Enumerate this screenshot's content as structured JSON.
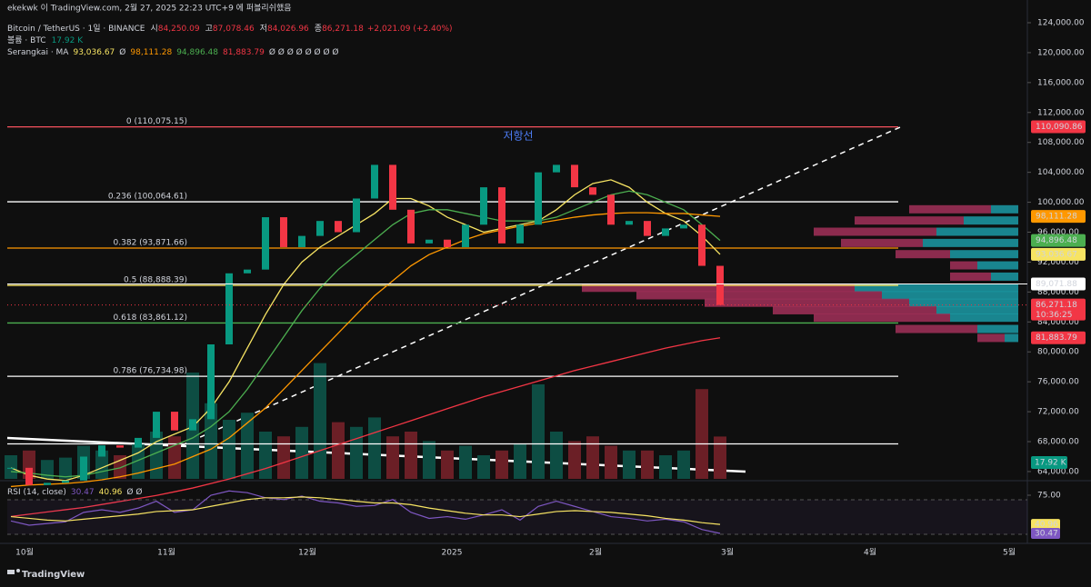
{
  "header": {
    "published": "ekekwk 이 TradingView.com, 2월 27, 2025 22:23 UTC+9 에 퍼블리쉬했음",
    "symbol": "Bitcoin / TetherUS · 1일 · BINANCE",
    "ohlc": [
      {
        "label": "시",
        "value": "84,250.09"
      },
      {
        "label": "고",
        "value": "87,078.46"
      },
      {
        "label": "저",
        "value": "84,026.96"
      },
      {
        "label": "종",
        "value": "86,271.18"
      }
    ],
    "change": "+2,021.09 (+2.40%)",
    "volume_label": "볼륨 · BTC",
    "volume_value": "17.92 K",
    "ma_label": "Serangkai · MA",
    "ma_values": [
      {
        "text": "93,036.67",
        "color": "#f7e463"
      },
      {
        "text": "Ø",
        "color": "#d1d4dc"
      },
      {
        "text": "98,111.28",
        "color": "#ff9800"
      },
      {
        "text": "94,896.48",
        "color": "#4caf50"
      },
      {
        "text": "81,883.79",
        "color": "#f23645"
      },
      {
        "text": "Ø Ø Ø Ø Ø Ø Ø Ø",
        "color": "#d1d4dc"
      }
    ]
  },
  "annotation": "저항선",
  "price_axis": {
    "ticks": [
      {
        "value": 124000,
        "label": "124,000.00"
      },
      {
        "value": 120000,
        "label": "120,000.00"
      },
      {
        "value": 116000,
        "label": "116,000.00"
      },
      {
        "value": 112000,
        "label": "112,000.00"
      },
      {
        "value": 108000,
        "label": "108,000.00"
      },
      {
        "value": 104000,
        "label": "104,000.00"
      },
      {
        "value": 100000,
        "label": "100,000.00"
      },
      {
        "value": 96000,
        "label": "96,000.00"
      },
      {
        "value": 92000,
        "label": "92,000.00"
      },
      {
        "value": 88000,
        "label": "88,000.00"
      },
      {
        "value": 84000,
        "label": "84,000.00"
      },
      {
        "value": 80000,
        "label": "80,000.00"
      },
      {
        "value": 76000,
        "label": "76,000.00"
      },
      {
        "value": 72000,
        "label": "72,000.00"
      },
      {
        "value": 68000,
        "label": "68,000.00"
      },
      {
        "value": 64000,
        "label": "64,000.00"
      }
    ]
  },
  "time_axis": [
    "10월",
    "11월",
    "12월",
    "2025",
    "2월",
    "3월",
    "4월",
    "5월"
  ],
  "fib_levels": [
    {
      "label": "0 (110,075.15)",
      "value": 110075.15,
      "color": "#f7525f"
    },
    {
      "label": "0.236 (100,064.61)",
      "value": 100064.61,
      "color": "#ffffff"
    },
    {
      "label": "0.382 (93,871.66)",
      "value": 93871.66,
      "color": "#ff9800"
    },
    {
      "label": "0.5 (88,888.39)",
      "value": 88888.39,
      "color": "#f7e463"
    },
    {
      "label": "0.618 (83,861.12)",
      "value": 83861.12,
      "color": "#4caf50"
    },
    {
      "label": "0.786 (76,734.98)",
      "value": 76734.98,
      "color": "#ffffff"
    },
    {
      "label": null,
      "value": 67700,
      "color": "#ffffff"
    }
  ],
  "price_tags": [
    {
      "label": "110,090.86",
      "value": 110090.86,
      "color": "#f23645"
    },
    {
      "label": "98,111.28",
      "value": 98111.28,
      "color": "#ff9800"
    },
    {
      "label": "94,896.48",
      "value": 94896.48,
      "color": "#4caf50"
    },
    {
      "label": "93,036.67",
      "value": 93036.67,
      "color": "#f7e463"
    },
    {
      "label": "89,071.88",
      "value": 89071.88,
      "color": "#ffffff"
    },
    {
      "label": "86,271.18",
      "value": 86271.18,
      "color": "#f23645",
      "countdown": "10:36:25"
    },
    {
      "label": "81,883.79",
      "value": 81883.79,
      "color": "#f23645"
    }
  ],
  "candles": {
    "closes": [
      64500,
      62200,
      62500,
      62800,
      66000,
      67500,
      67200,
      68500,
      72000,
      69500,
      71000,
      81000,
      90500,
      91000,
      98000,
      94000,
      95500,
      97500,
      96000,
      100500,
      105000,
      99000,
      94500,
      95000,
      94000,
      97000,
      102000,
      94500,
      97000,
      104000,
      105000,
      102000,
      101000,
      97000,
      97500,
      95500,
      96500,
      97000,
      91500,
      86271.18
    ],
    "up_color": "#089981",
    "down_color": "#f23645"
  },
  "moving_averages": [
    {
      "color": "#f7e463",
      "values": [
        64500,
        63500,
        63000,
        62800,
        63500,
        64500,
        65500,
        66500,
        68000,
        69000,
        70000,
        72500,
        76000,
        80500,
        85000,
        89000,
        92000,
        94000,
        95500,
        97000,
        98500,
        100500,
        100500,
        99500,
        98000,
        97000,
        96000,
        96500,
        97000,
        97500,
        99000,
        101000,
        102500,
        103000,
        102000,
        100000,
        98500,
        97500,
        95500,
        93036.67
      ]
    },
    {
      "color": "#4caf50",
      "values": [
        64000,
        63800,
        63500,
        63300,
        63500,
        64000,
        64500,
        65500,
        66500,
        67500,
        68500,
        70000,
        72000,
        75000,
        78500,
        82000,
        85500,
        88500,
        91000,
        93000,
        95000,
        97000,
        98500,
        99000,
        99000,
        98500,
        98000,
        97500,
        97500,
        97500,
        98000,
        99000,
        100000,
        101000,
        101500,
        101000,
        100000,
        99000,
        97000,
        94896.48
      ]
    },
    {
      "color": "#ff9800",
      "values": [
        62000,
        62200,
        62300,
        62400,
        62600,
        62900,
        63300,
        63800,
        64400,
        65000,
        66000,
        67000,
        68500,
        70500,
        72500,
        75000,
        77500,
        80000,
        82500,
        85000,
        87500,
        89500,
        91500,
        93000,
        94000,
        95000,
        95800,
        96300,
        96800,
        97200,
        97600,
        98000,
        98300,
        98500,
        98600,
        98600,
        98500,
        98500,
        98300,
        98111.28
      ]
    },
    {
      "color": "#f23645",
      "values": [
        58000,
        58300,
        58600,
        58900,
        59200,
        59600,
        60000,
        60400,
        60800,
        61300,
        61800,
        62400,
        63000,
        63700,
        64400,
        65200,
        66000,
        66800,
        67600,
        68400,
        69200,
        70000,
        70800,
        71600,
        72400,
        73200,
        74000,
        74700,
        75400,
        76100,
        76800,
        77500,
        78100,
        78700,
        79300,
        79900,
        80500,
        81000,
        81500,
        81883.79
      ]
    }
  ],
  "volume": {
    "values": [
      10,
      12,
      8,
      9,
      14,
      12,
      10,
      15,
      20,
      18,
      45,
      32,
      25,
      28,
      20,
      18,
      22,
      49,
      24,
      22,
      26,
      18,
      20,
      16,
      12,
      14,
      10,
      12,
      15,
      40,
      20,
      16,
      18,
      14,
      12,
      12,
      10,
      12,
      38,
      17.92
    ],
    "tag": "17.92 K"
  },
  "volume_profile": [
    {
      "price": 99000,
      "up": 20,
      "down": 60
    },
    {
      "price": 97500,
      "up": 40,
      "down": 80
    },
    {
      "price": 96000,
      "up": 60,
      "down": 90
    },
    {
      "price": 94500,
      "up": 70,
      "down": 60
    },
    {
      "price": 93000,
      "up": 50,
      "down": 40
    },
    {
      "price": 91500,
      "up": 30,
      "down": 20
    },
    {
      "price": 90000,
      "up": 20,
      "down": 30
    },
    {
      "price": 88500,
      "up": 120,
      "down": 200
    },
    {
      "price": 87500,
      "up": 100,
      "down": 180
    },
    {
      "price": 86500,
      "up": 80,
      "down": 150
    },
    {
      "price": 85500,
      "up": 60,
      "down": 120
    },
    {
      "price": 84500,
      "up": 50,
      "down": 100
    },
    {
      "price": 83000,
      "up": 30,
      "down": 60
    },
    {
      "price": 81800,
      "up": 10,
      "down": 20
    }
  ],
  "rsi": {
    "label": "RSI (14, close)",
    "value_text": "30.47",
    "ma_text": "40.96",
    "extra": "Ø  Ø",
    "ticks": [
      {
        "value": 75,
        "label": "75.00"
      }
    ],
    "values": [
      45,
      40,
      42,
      44,
      55,
      58,
      55,
      60,
      68,
      55,
      58,
      75,
      80,
      78,
      72,
      70,
      74,
      68,
      66,
      62,
      63,
      70,
      55,
      48,
      50,
      47,
      52,
      58,
      46,
      62,
      68,
      62,
      56,
      50,
      48,
      45,
      47,
      44,
      35,
      30.47
    ],
    "ma": [
      50,
      48,
      46,
      45,
      47,
      49,
      51,
      53,
      56,
      57,
      58,
      62,
      66,
      70,
      72,
      72,
      73,
      72,
      70,
      68,
      66,
      66,
      64,
      60,
      57,
      54,
      52,
      52,
      50,
      53,
      56,
      57,
      56,
      55,
      53,
      51,
      48,
      46,
      43,
      40.96
    ],
    "tags": [
      {
        "label": "40.96",
        "value": 40.96,
        "color": "#f7e463"
      },
      {
        "label": "30.47",
        "value": 30.47,
        "color": "#7e57c2"
      }
    ]
  },
  "footer": "TradingView"
}
